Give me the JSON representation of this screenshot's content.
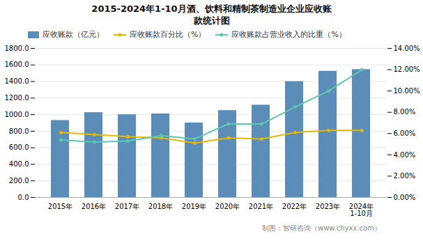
{
  "chart_data": {
    "type": "bar",
    "title": "2015-2024年1-10月酒、饮料和精制茶制造业企业应收账\n款统计图",
    "caption": "制图：智研咨询（www.chyxx.com）",
    "categories": [
      "2015年",
      "2016年",
      "2017年",
      "2018年",
      "2019年",
      "2020年",
      "2021年",
      "2022年",
      "2023年",
      "2024年\n1-10月"
    ],
    "series": [
      {
        "name": "应收账款（亿元）",
        "type": "bar",
        "color": "#5b8db8",
        "values": [
          930,
          1025,
          1000,
          1010,
          900,
          1050,
          1115,
          1400,
          1525,
          1545
        ]
      },
      {
        "name": "应收账款百分比（%）",
        "type": "line",
        "axis": "y2",
        "color": "#e6b800",
        "marker": "circle",
        "values": [
          6.1,
          5.9,
          5.7,
          5.6,
          5.1,
          5.6,
          5.5,
          6.1,
          6.3,
          6.3
        ]
      },
      {
        "name": "应收账款占营业收入的比重（%）",
        "type": "line",
        "axis": "y2",
        "color": "#5bc8af",
        "marker": "circle",
        "values": [
          5.4,
          5.2,
          5.3,
          5.8,
          5.5,
          6.9,
          6.9,
          8.5,
          10.0,
          12.0
        ]
      }
    ],
    "ylim": [
      0,
      1800
    ],
    "yticks": [
      {
        "value": 0,
        "label": "0.0"
      },
      {
        "value": 200,
        "label": "200.0"
      },
      {
        "value": 400,
        "label": "400.0"
      },
      {
        "value": 600,
        "label": "600.0"
      },
      {
        "value": 800,
        "label": "800.0"
      },
      {
        "value": 1000,
        "label": "1000.0"
      },
      {
        "value": 1200,
        "label": "1200.0"
      },
      {
        "value": 1400,
        "label": "1400.0"
      },
      {
        "value": 1600,
        "label": "1600.0"
      },
      {
        "value": 1800,
        "label": "1800.0"
      }
    ],
    "y2lim": [
      0,
      14
    ],
    "y2ticks": [
      {
        "value": 0,
        "label": "0.00%"
      },
      {
        "value": 2,
        "label": "2.00%"
      },
      {
        "value": 4,
        "label": "4.00%"
      },
      {
        "value": 6,
        "label": "6.00%"
      },
      {
        "value": 8,
        "label": "8.00%"
      },
      {
        "value": 10,
        "label": "10.00%"
      },
      {
        "value": 12,
        "label": "12.00%"
      },
      {
        "value": 14,
        "label": "14.00%"
      }
    ],
    "grid": true,
    "legend": "top-left"
  }
}
